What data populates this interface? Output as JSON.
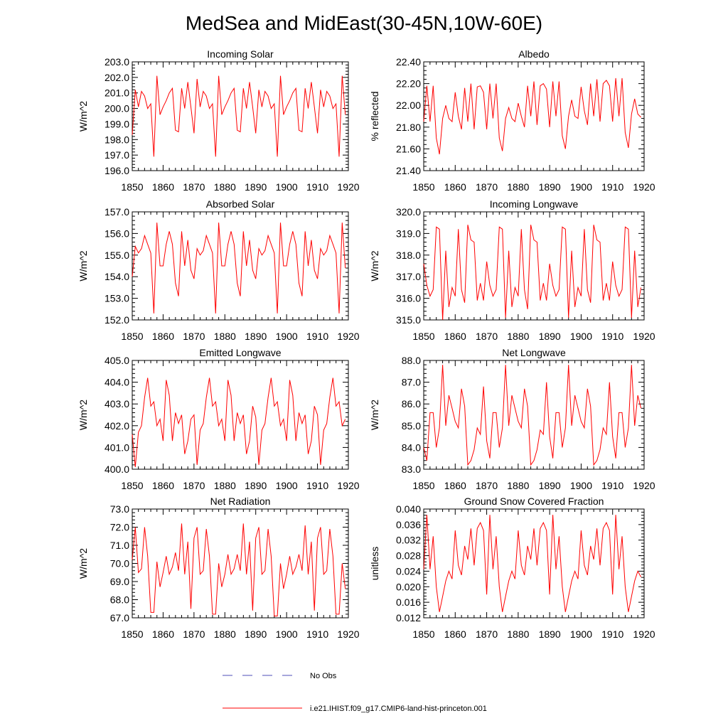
{
  "title": "MedSea and MidEast(30-45N,10W-60E)",
  "legend": {
    "placement": "bottom-center",
    "items": [
      {
        "label": "No Obs",
        "color": "#4f4fb8",
        "dashed": true
      },
      {
        "label": "i.e21.IHIST.f09_g17.CMIP6-land-hist-princeton.001",
        "color": "#ff0000",
        "dashed": false
      }
    ]
  },
  "chart_data": [
    {
      "type": "line",
      "title": "Incoming Solar",
      "ylabel": "W/m^2",
      "xlim": [
        1850,
        1920
      ],
      "ylim": [
        196.0,
        203.0
      ],
      "xticks": [
        "1850",
        "1860",
        "1870",
        "1880",
        "1890",
        "1900",
        "1910",
        "1920"
      ],
      "yticks": [
        "196.0",
        "197.0",
        "198.0",
        "199.0",
        "200.0",
        "201.0",
        "202.0",
        "203.0"
      ],
      "grid": false,
      "x_start": 1850,
      "color": "#ff0000",
      "values": [
        198.3,
        201.2,
        200.1,
        201.1,
        200.8,
        200.0,
        200.3,
        196.9,
        202.1,
        199.6,
        200.1,
        200.5,
        201.0,
        201.3,
        198.6,
        198.5,
        201.3,
        200.0,
        201.7,
        200.1,
        198.4,
        201.9,
        200.1,
        201.1,
        200.8,
        200.0,
        200.3,
        196.9,
        202.1,
        199.6,
        200.1,
        200.5,
        201.0,
        201.3,
        198.6,
        198.5,
        201.3,
        200.0,
        201.7,
        200.1,
        198.4,
        201.2,
        200.1,
        201.1,
        200.8,
        200.0,
        200.3,
        196.9,
        202.1,
        199.6,
        200.1,
        200.5,
        201.0,
        201.3,
        198.6,
        198.5,
        201.3,
        200.0,
        201.7,
        200.1,
        198.4,
        201.2,
        200.1,
        201.1,
        200.8,
        200.0,
        200.3,
        196.9,
        202.1,
        199.6
      ]
    },
    {
      "type": "line",
      "title": "Albedo",
      "ylabel": "% reflected",
      "xlim": [
        1850,
        1920
      ],
      "ylim": [
        21.4,
        22.4
      ],
      "xticks": [
        "1850",
        "1860",
        "1870",
        "1880",
        "1890",
        "1900",
        "1910",
        "1920"
      ],
      "yticks": [
        "21.40",
        "21.60",
        "21.80",
        "22.00",
        "22.20",
        "22.40"
      ],
      "grid": false,
      "x_start": 1850,
      "color": "#ff0000",
      "values": [
        21.85,
        22.18,
        21.85,
        22.18,
        21.7,
        21.55,
        21.88,
        22.0,
        21.88,
        21.85,
        22.12,
        21.9,
        21.78,
        22.16,
        21.85,
        22.2,
        21.78,
        22.17,
        22.18,
        22.12,
        21.78,
        22.2,
        21.88,
        22.2,
        21.7,
        21.58,
        21.88,
        21.98,
        21.88,
        21.85,
        22.02,
        21.9,
        21.8,
        22.18,
        21.9,
        22.22,
        21.82,
        22.18,
        22.2,
        22.15,
        21.8,
        22.22,
        21.9,
        22.22,
        21.72,
        21.6,
        21.9,
        22.05,
        21.9,
        21.88,
        22.17,
        21.95,
        21.82,
        22.2,
        21.9,
        22.24,
        21.85,
        22.2,
        22.23,
        22.18,
        21.85,
        22.25,
        21.9,
        22.25,
        21.75,
        21.61,
        21.92,
        22.06,
        21.92,
        21.89
      ]
    },
    {
      "type": "line",
      "title": "Absorbed Solar",
      "ylabel": "W/m^2",
      "xlim": [
        1850,
        1920
      ],
      "ylim": [
        152.0,
        157.0
      ],
      "xticks": [
        "1850",
        "1860",
        "1870",
        "1880",
        "1890",
        "1900",
        "1910",
        "1920"
      ],
      "yticks": [
        "152.0",
        "153.0",
        "154.0",
        "155.0",
        "156.0",
        "157.0"
      ],
      "grid": false,
      "x_start": 1850,
      "color": "#ff0000",
      "values": [
        154.0,
        155.4,
        155.1,
        155.3,
        155.9,
        155.5,
        155.1,
        152.3,
        156.5,
        154.5,
        154.5,
        155.5,
        156.1,
        155.5,
        153.7,
        153.1,
        156.1,
        154.5,
        155.7,
        154.3,
        153.9,
        155.3,
        155.0,
        155.2,
        155.9,
        155.5,
        155.1,
        152.3,
        156.5,
        154.5,
        154.5,
        155.5,
        156.1,
        155.5,
        153.7,
        153.1,
        156.1,
        154.5,
        155.7,
        154.3,
        153.9,
        155.3,
        155.0,
        155.2,
        155.9,
        155.5,
        155.1,
        152.3,
        156.5,
        154.5,
        154.5,
        155.5,
        156.1,
        155.5,
        153.7,
        153.1,
        156.1,
        154.5,
        155.7,
        154.3,
        153.9,
        155.3,
        155.0,
        155.2,
        155.9,
        155.5,
        155.1,
        152.3,
        156.5,
        154.4
      ]
    },
    {
      "type": "line",
      "title": "Incoming Longwave",
      "ylabel": "W/m^2",
      "xlim": [
        1850,
        1920
      ],
      "ylim": [
        315.0,
        320.0
      ],
      "xticks": [
        "1850",
        "1860",
        "1870",
        "1880",
        "1890",
        "1900",
        "1910",
        "1920"
      ],
      "yticks": [
        "315.0",
        "316.0",
        "317.0",
        "318.0",
        "319.0",
        "320.0"
      ],
      "grid": false,
      "x_start": 1850,
      "color": "#ff0000",
      "values": [
        317.6,
        316.6,
        316.1,
        316.4,
        319.3,
        319.2,
        315.0,
        318.2,
        315.6,
        316.5,
        316.1,
        319.2,
        316.4,
        315.8,
        319.4,
        318.7,
        318.6,
        315.9,
        316.7,
        315.9,
        317.7,
        316.6,
        316.1,
        316.4,
        319.3,
        319.2,
        315.1,
        318.2,
        315.6,
        316.5,
        316.1,
        319.2,
        316.4,
        315.5,
        319.4,
        318.7,
        318.6,
        315.9,
        316.7,
        315.9,
        317.6,
        316.6,
        316.1,
        316.4,
        319.3,
        319.2,
        315.1,
        318.2,
        315.6,
        316.5,
        316.1,
        319.2,
        316.4,
        315.8,
        319.4,
        318.7,
        318.6,
        315.9,
        316.7,
        315.9,
        317.7,
        316.6,
        316.1,
        316.4,
        319.3,
        319.2,
        315.1,
        318.2,
        315.6,
        316.5
      ]
    },
    {
      "type": "line",
      "title": "Emitted Longwave",
      "ylabel": "W/m^2",
      "xlim": [
        1850,
        1920
      ],
      "ylim": [
        400.0,
        405.0
      ],
      "xticks": [
        "1850",
        "1860",
        "1870",
        "1880",
        "1890",
        "1900",
        "1910",
        "1920"
      ],
      "yticks": [
        "400.0",
        "401.0",
        "402.0",
        "403.0",
        "404.0",
        "405.0"
      ],
      "grid": false,
      "x_start": 1850,
      "color": "#ff0000",
      "values": [
        401.6,
        400.1,
        401.7,
        402.0,
        403.3,
        404.2,
        402.9,
        403.1,
        402.0,
        402.3,
        401.3,
        404.1,
        403.4,
        401.3,
        402.6,
        402.1,
        402.5,
        400.7,
        401.3,
        402.3,
        402.5,
        400.2,
        401.8,
        402.1,
        403.3,
        404.2,
        402.9,
        403.1,
        402.0,
        402.3,
        401.3,
        404.1,
        403.4,
        401.3,
        402.6,
        402.1,
        402.5,
        400.7,
        401.3,
        402.9,
        402.4,
        400.2,
        401.8,
        402.1,
        403.3,
        404.2,
        402.9,
        403.1,
        402.0,
        402.3,
        401.3,
        404.1,
        403.4,
        401.3,
        402.6,
        402.1,
        402.5,
        400.7,
        401.3,
        402.9,
        402.5,
        400.2,
        401.8,
        402.1,
        403.3,
        404.2,
        402.9,
        403.1,
        402.0,
        402.3
      ]
    },
    {
      "type": "line",
      "title": "Net Longwave",
      "ylabel": "W/m^2",
      "xlim": [
        1850,
        1920
      ],
      "ylim": [
        83.0,
        88.0
      ],
      "xticks": [
        "1850",
        "1860",
        "1870",
        "1880",
        "1890",
        "1900",
        "1910",
        "1920"
      ],
      "yticks": [
        "83.0",
        "84.0",
        "85.0",
        "86.0",
        "87.0",
        "88.0"
      ],
      "grid": false,
      "x_start": 1850,
      "color": "#ff0000",
      "values": [
        84.0,
        83.4,
        85.6,
        85.6,
        84.0,
        84.9,
        87.8,
        85.0,
        86.4,
        85.8,
        85.2,
        84.9,
        86.7,
        85.9,
        83.2,
        83.4,
        83.9,
        84.9,
        84.6,
        86.8,
        84.3,
        83.5,
        85.6,
        85.6,
        84.0,
        84.9,
        87.8,
        85.0,
        86.4,
        85.8,
        85.2,
        84.9,
        86.7,
        85.9,
        83.2,
        83.4,
        83.9,
        84.8,
        84.6,
        87.0,
        84.5,
        83.5,
        85.6,
        85.6,
        84.0,
        84.9,
        87.8,
        85.0,
        86.4,
        85.8,
        85.2,
        84.9,
        86.7,
        85.9,
        83.2,
        83.4,
        83.9,
        84.9,
        84.6,
        87.0,
        84.5,
        83.5,
        85.6,
        85.6,
        84.0,
        84.9,
        87.8,
        85.0,
        86.4,
        85.8
      ]
    },
    {
      "type": "line",
      "title": "Net Radiation",
      "ylabel": "W/m^2",
      "xlim": [
        1850,
        1920
      ],
      "ylim": [
        67.0,
        73.0
      ],
      "xticks": [
        "1850",
        "1860",
        "1870",
        "1880",
        "1890",
        "1900",
        "1910",
        "1920"
      ],
      "yticks": [
        "67.0",
        "68.0",
        "69.0",
        "70.0",
        "71.0",
        "72.0",
        "73.0"
      ],
      "grid": false,
      "x_start": 1850,
      "color": "#ff0000",
      "values": [
        70.2,
        72.0,
        69.5,
        69.7,
        72.0,
        70.4,
        67.3,
        67.3,
        70.1,
        68.7,
        69.5,
        70.4,
        69.4,
        69.8,
        70.6,
        69.6,
        72.2,
        69.4,
        71.2,
        67.5,
        71.4,
        72.0,
        69.4,
        69.6,
        71.9,
        70.4,
        67.2,
        67.2,
        70.0,
        68.7,
        69.4,
        70.5,
        69.4,
        69.7,
        70.5,
        69.6,
        72.2,
        69.4,
        71.2,
        67.4,
        71.4,
        72.0,
        69.4,
        69.6,
        71.9,
        70.4,
        67.1,
        67.1,
        70.0,
        68.6,
        69.4,
        70.4,
        69.4,
        69.8,
        70.5,
        69.6,
        72.1,
        69.4,
        71.2,
        67.4,
        71.4,
        72.0,
        69.4,
        69.6,
        71.9,
        70.4,
        67.2,
        67.2,
        70.0,
        68.6
      ]
    },
    {
      "type": "line",
      "title": "Ground Snow Covered Fraction",
      "ylabel": "unitless",
      "xlim": [
        1850,
        1920
      ],
      "ylim": [
        0.012,
        0.04
      ],
      "xticks": [
        "1850",
        "1860",
        "1870",
        "1880",
        "1890",
        "1900",
        "1910",
        "1920"
      ],
      "yticks": [
        "0.012",
        "0.016",
        "0.020",
        "0.024",
        "0.028",
        "0.032",
        "0.036",
        "0.040"
      ],
      "grid": false,
      "x_start": 1850,
      "color": "#ff0000",
      "values": [
        0.0245,
        0.0385,
        0.0245,
        0.033,
        0.02,
        0.0135,
        0.0175,
        0.0215,
        0.024,
        0.022,
        0.0345,
        0.0255,
        0.023,
        0.0305,
        0.027,
        0.035,
        0.0255,
        0.035,
        0.0365,
        0.0345,
        0.018,
        0.0385,
        0.0245,
        0.033,
        0.02,
        0.0135,
        0.0175,
        0.0215,
        0.024,
        0.022,
        0.0345,
        0.0255,
        0.023,
        0.0305,
        0.027,
        0.035,
        0.0255,
        0.035,
        0.0365,
        0.0345,
        0.018,
        0.0385,
        0.0245,
        0.033,
        0.02,
        0.0135,
        0.0175,
        0.0215,
        0.024,
        0.022,
        0.0345,
        0.0255,
        0.023,
        0.0305,
        0.027,
        0.035,
        0.0255,
        0.035,
        0.0365,
        0.0345,
        0.018,
        0.0385,
        0.0245,
        0.033,
        0.02,
        0.0135,
        0.0175,
        0.0215,
        0.024,
        0.0225
      ]
    }
  ]
}
